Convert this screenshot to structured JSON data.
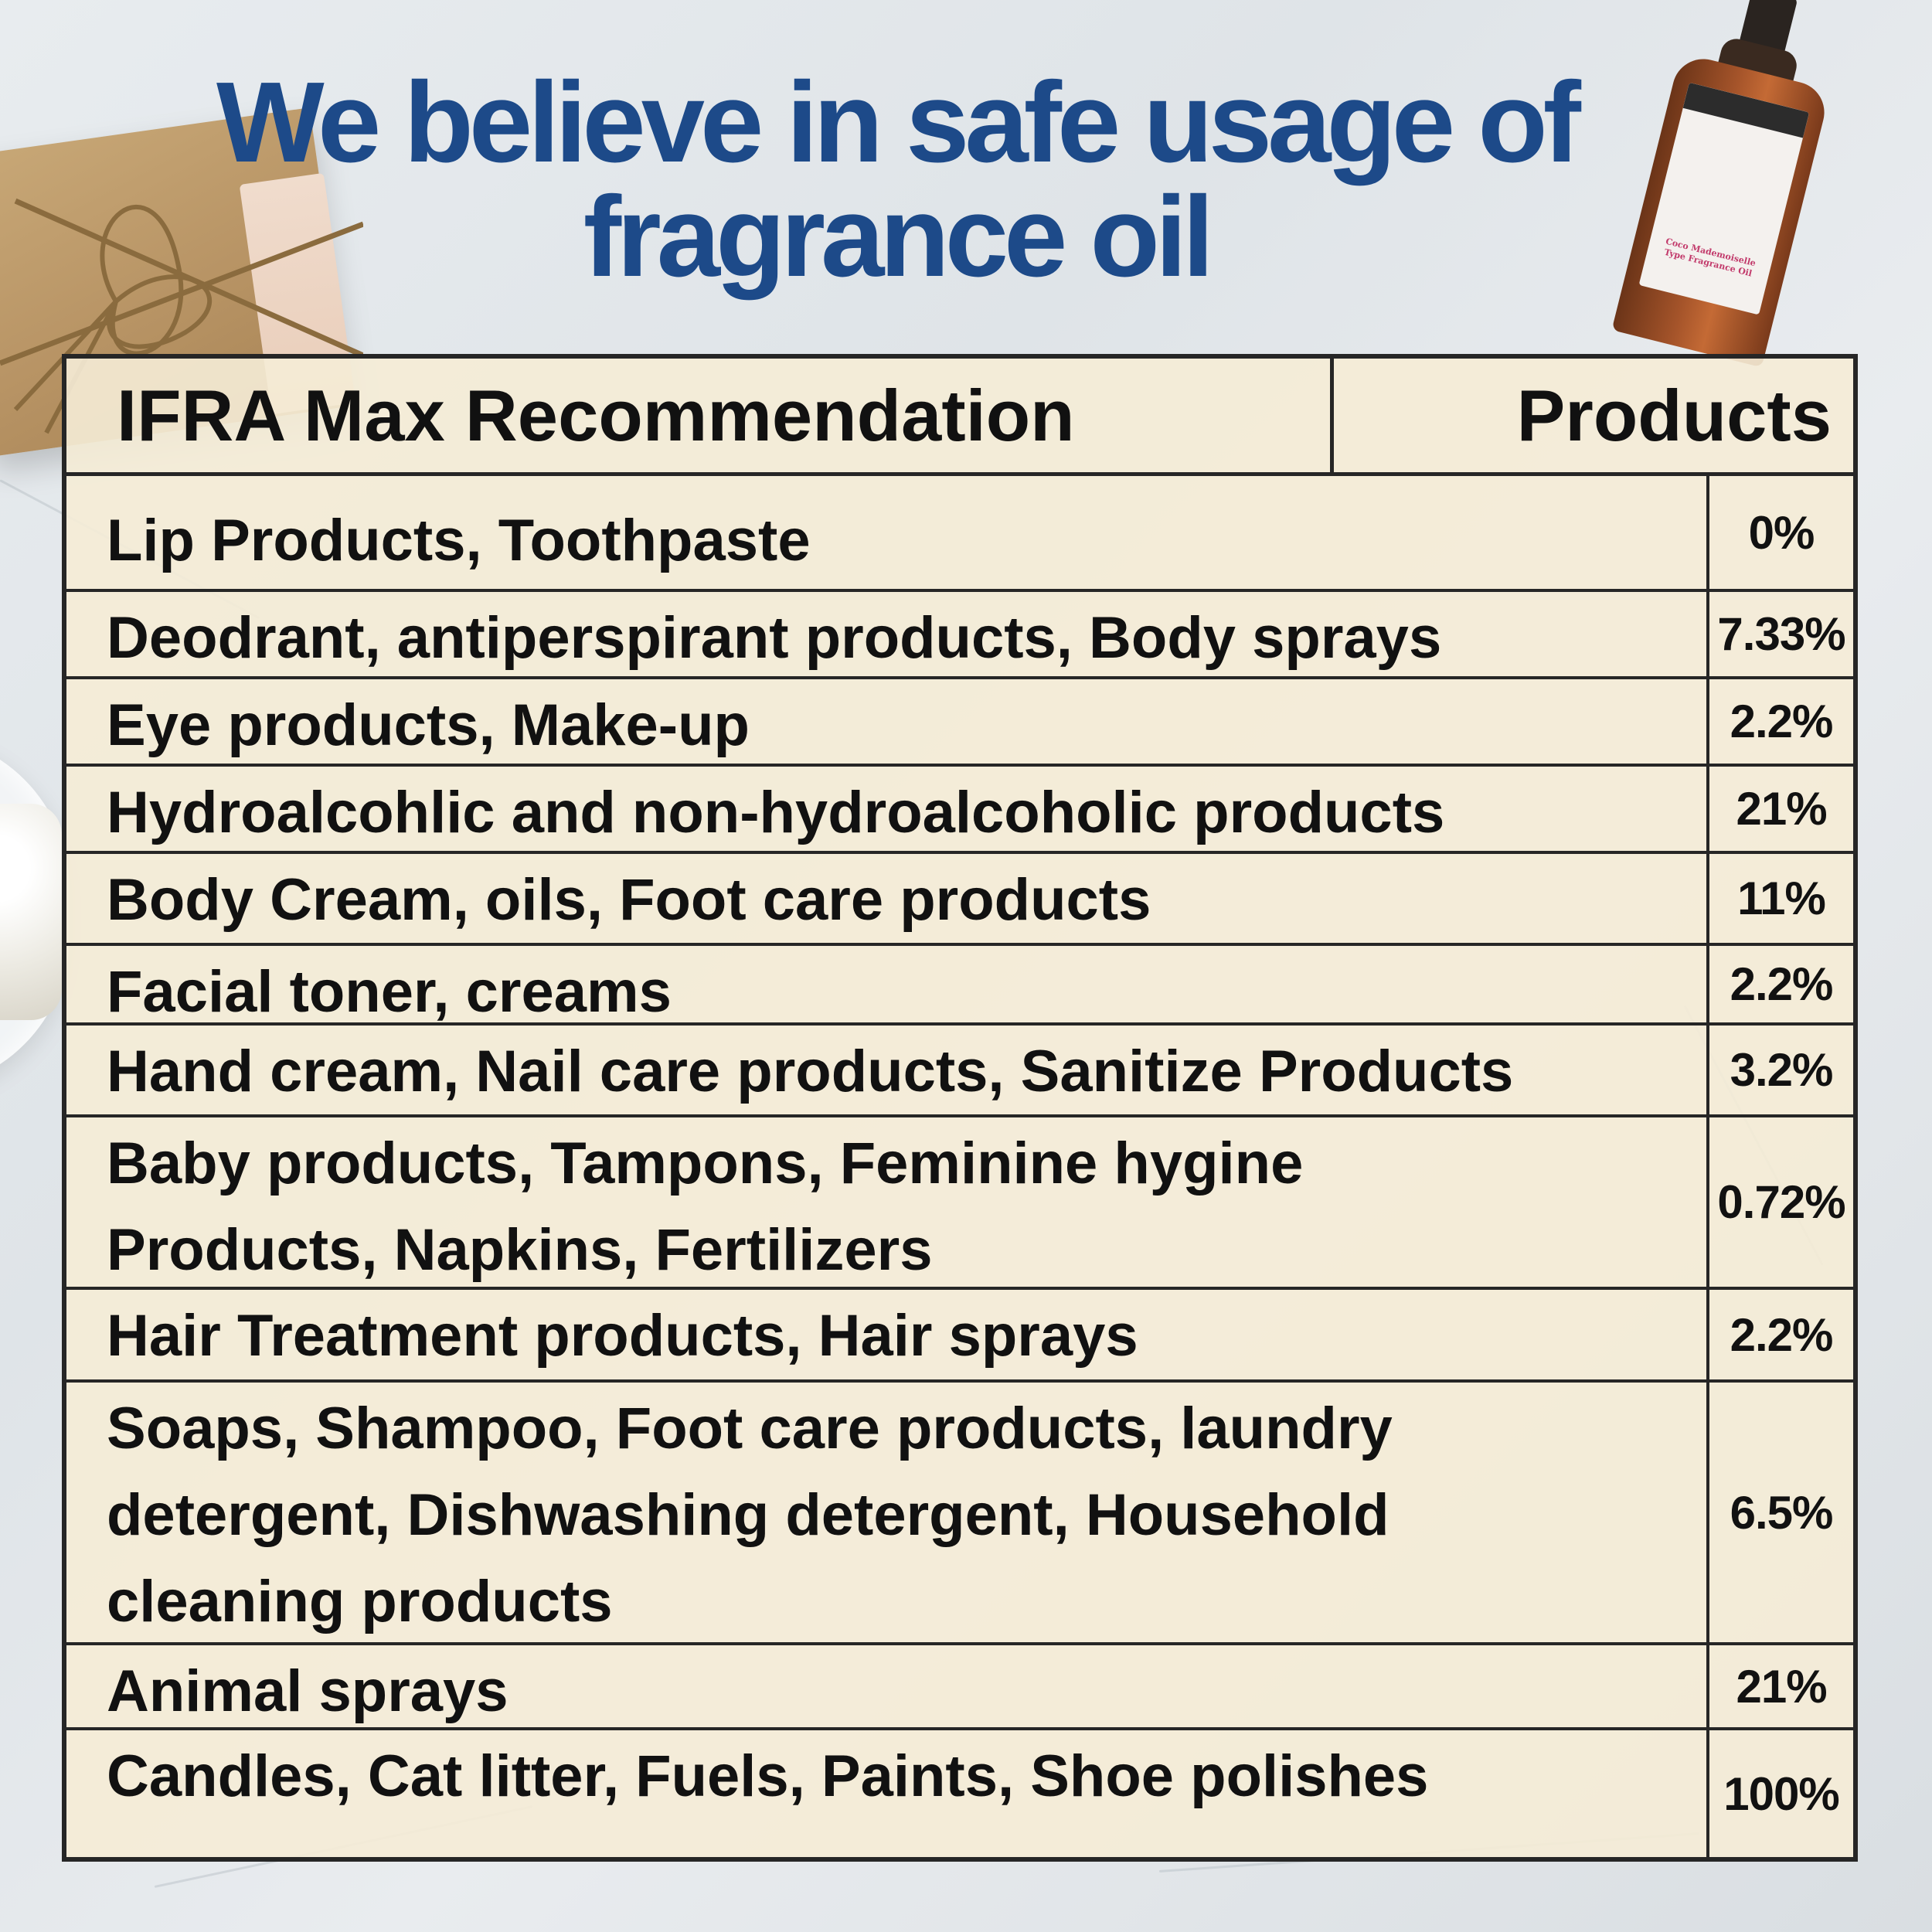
{
  "title": "We believe in safe usage of fragrance oil",
  "colors": {
    "title": "#1d4a89",
    "table_bg": "#f5ecd6",
    "border": "#262626"
  },
  "decor": {
    "bottle_label": "Coco Mademoiselle Type Fragrance Oil"
  },
  "table": {
    "header_left": "IFRA Max Recommendation",
    "header_right": "Products",
    "rows": [
      {
        "label": "Lip Products, Toothpaste",
        "value": "0%"
      },
      {
        "label": "Deodrant, antiperspirant products, Body sprays",
        "value": "7.33%"
      },
      {
        "label": "Eye products, Make-up",
        "value": "2.2%"
      },
      {
        "label": "Hydroalcohlic and non-hydroalcoholic products",
        "value": "21%"
      },
      {
        "label": "Body Cream, oils, Foot care products",
        "value": "11%"
      },
      {
        "label": "Facial toner, creams",
        "value": "2.2%"
      },
      {
        "label": "Hand cream, Nail care products, Sanitize Products",
        "value": "3.2%"
      },
      {
        "label": "Baby products, Tampons, Feminine hygine\nProducts, Napkins, Fertilizers",
        "value": "0.72%"
      },
      {
        "label": "Hair Treatment products, Hair sprays",
        "value": "2.2%"
      },
      {
        "label": "Soaps, Shampoo, Foot care products, laundry\ndetergent, Dishwashing detergent, Household\ncleaning products",
        "value": "6.5%"
      },
      {
        "label": "Animal sprays",
        "value": "21%"
      },
      {
        "label": "Candles, Cat litter, Fuels, Paints, Shoe polishes",
        "value": "100%"
      }
    ]
  }
}
